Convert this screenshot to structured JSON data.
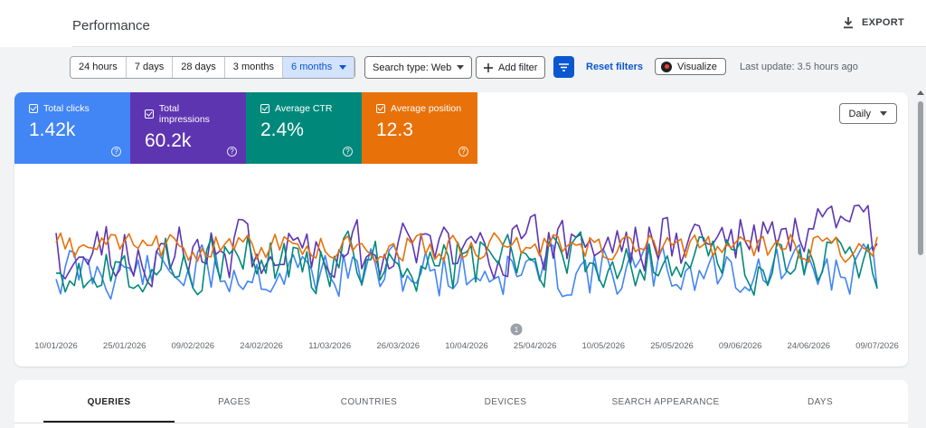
{
  "header": {
    "title": "Performance",
    "export_label": "EXPORT"
  },
  "toolbar": {
    "ranges": [
      "24 hours",
      "7 days",
      "28 days",
      "3 months",
      "6 months"
    ],
    "active_range": "6 months",
    "search_type": "Search type: Web",
    "add_filter": "Add filter",
    "reset_filters": "Reset filters",
    "visualize": "Visualize",
    "last_update": "Last update: 3.5 hours ago"
  },
  "metrics": [
    {
      "label": "Total clicks",
      "value": "1.42k",
      "color": "#4285f4"
    },
    {
      "label": "Total impressions",
      "value": "60.2k",
      "color": "#5e35b1"
    },
    {
      "label": "Average CTR",
      "value": "2.4%",
      "color": "#00897b"
    },
    {
      "label": "Average position",
      "value": "12.3",
      "color": "#e8710a"
    }
  ],
  "granularity": "Daily",
  "annotation_marker": "1",
  "chart_data": {
    "type": "line",
    "x_ticks": [
      "10/01/2026",
      "25/01/2026",
      "09/02/2026",
      "24/02/2026",
      "11/03/2026",
      "26/03/2026",
      "10/04/2026",
      "25/04/2026",
      "10/05/2026",
      "25/05/2026",
      "09/06/2026",
      "24/06/2026",
      "09/07/2026"
    ],
    "x_range": [
      "10/01/2026",
      "09/07/2026"
    ],
    "y_axis_visible": false,
    "grid": false,
    "series_colors": [
      "#4285f4",
      "#5e35b1",
      "#00897b",
      "#e8710a"
    ]
  },
  "tabs": [
    "QUERIES",
    "PAGES",
    "COUNTRIES",
    "DEVICES",
    "SEARCH APPEARANCE",
    "DAYS"
  ],
  "active_tab": "QUERIES"
}
